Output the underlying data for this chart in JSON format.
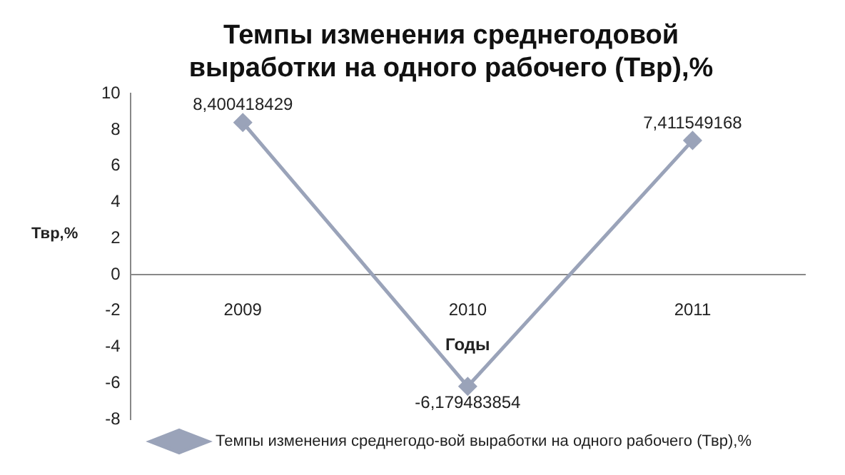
{
  "chart_data": {
    "type": "line",
    "title": "Темпы изменения среднегодовой выработки на одного рабочего (Твр),%",
    "xlabel": "Годы",
    "ylabel": "Твр,%",
    "categories": [
      "2009",
      "2010",
      "2011"
    ],
    "series": [
      {
        "name": "Темпы изменения среднегодо-вой выработки на одного рабочего (Твр),%",
        "color": "#9aa3b9",
        "values": [
          8.400418429,
          -6.179483854,
          7.411549168
        ],
        "value_labels": [
          "8,400418429",
          "-6,179483854",
          "7,411549168"
        ]
      }
    ],
    "ylim": [
      -8,
      10
    ],
    "yticks": [
      -8,
      -6,
      -4,
      -2,
      0,
      2,
      4,
      6,
      8,
      10
    ],
    "grid": false,
    "legend": "bottom",
    "marker": "diamond",
    "line_style": "solid"
  }
}
